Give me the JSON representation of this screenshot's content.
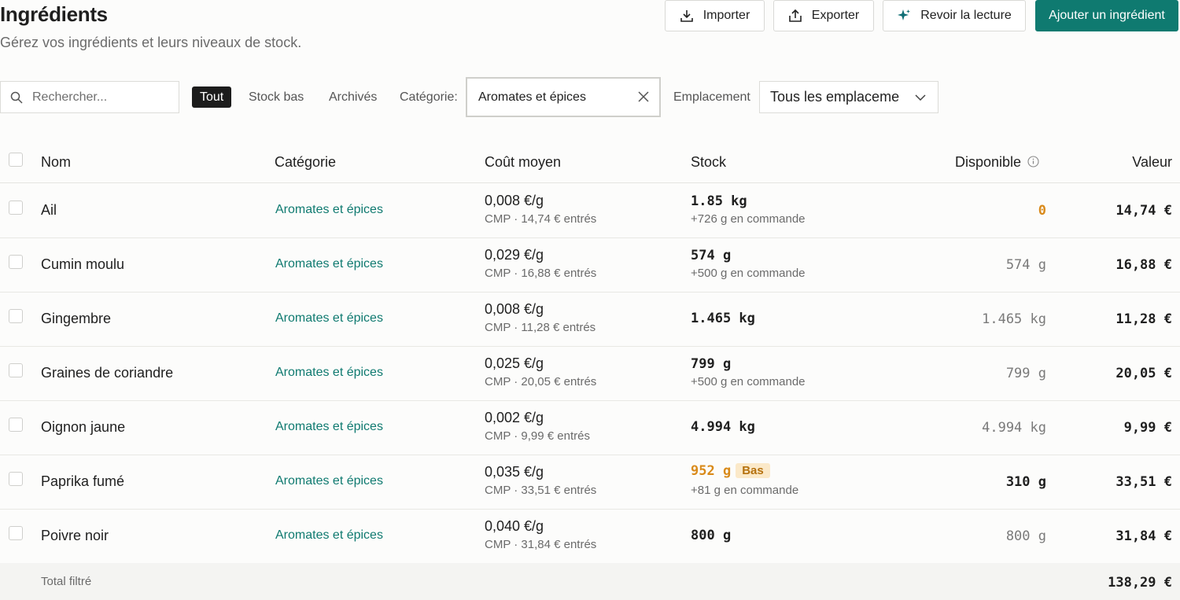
{
  "header": {
    "title": "Ingrédients",
    "subtitle": "Gérez vos ingrédients et leurs niveaux de stock.",
    "import_label": "Importer",
    "export_label": "Exporter",
    "review_label": "Revoir la lecture",
    "add_label": "Ajouter un ingrédient"
  },
  "filters": {
    "search_placeholder": "Rechercher...",
    "chip_all": "Tout",
    "chip_low": "Stock bas",
    "chip_archived": "Archivés",
    "category_label": "Catégorie:",
    "category_value": "Aromates et épices",
    "location_label": "Emplacement",
    "location_value": "Tous les emplaceme"
  },
  "table": {
    "headers": {
      "name": "Nom",
      "category": "Catégorie",
      "cost": "Coût moyen",
      "stock": "Stock",
      "available": "Disponible",
      "value": "Valeur"
    },
    "rows": [
      {
        "name": "Ail",
        "category": "Aromates et épices",
        "cost": "0,008 €/g",
        "cmp": "CMP · 14,74 € entrés",
        "stock": "1.85 kg",
        "order": "+726 g en commande",
        "available": "0",
        "value": "14,74 €"
      },
      {
        "name": "Cumin moulu",
        "category": "Aromates et épices",
        "cost": "0,029 €/g",
        "cmp": "CMP · 16,88 € entrés",
        "stock": "574 g",
        "order": "+500 g en commande",
        "available": "574 g",
        "value": "16,88 €"
      },
      {
        "name": "Gingembre",
        "category": "Aromates et épices",
        "cost": "0,008 €/g",
        "cmp": "CMP · 11,28 € entrés",
        "stock": "1.465 kg",
        "order": "",
        "available": "1.465 kg",
        "value": "11,28 €"
      },
      {
        "name": "Graines de coriandre",
        "category": "Aromates et épices",
        "cost": "0,025 €/g",
        "cmp": "CMP · 20,05 € entrés",
        "stock": "799 g",
        "order": "+500 g en commande",
        "available": "799 g",
        "value": "20,05 €"
      },
      {
        "name": "Oignon jaune",
        "category": "Aromates et épices",
        "cost": "0,002 €/g",
        "cmp": "CMP · 9,99 € entrés",
        "stock": "4.994 kg",
        "order": "",
        "available": "4.994 kg",
        "value": "9,99 €"
      },
      {
        "name": "Paprika fumé",
        "category": "Aromates et épices",
        "cost": "0,035 €/g",
        "cmp": "CMP · 33,51 € entrés",
        "stock": "952 g",
        "badge": "Bas",
        "order": "+81 g en commande",
        "available": "310 g",
        "value": "33,51 €"
      },
      {
        "name": "Poivre noir",
        "category": "Aromates et épices",
        "cost": "0,040 €/g",
        "cmp": "CMP · 31,84 € entrés",
        "stock": "800 g",
        "order": "",
        "available": "800 g",
        "value": "31,84 €"
      }
    ],
    "footer_label": "Total filtré",
    "footer_total": "138,29 €"
  }
}
